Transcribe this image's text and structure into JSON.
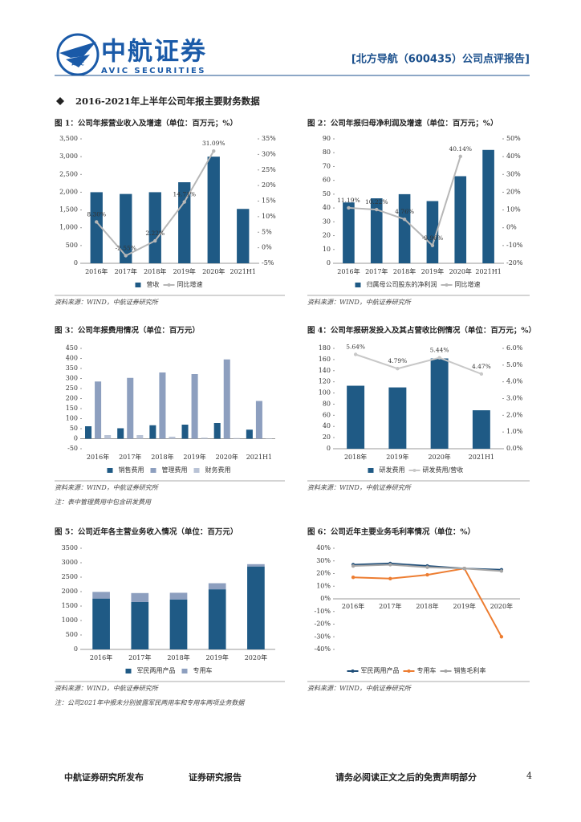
{
  "header": {
    "logo_mark": "AVIC",
    "logo_name": "中航证券",
    "logo_en": "AVIC SECURITIES",
    "report_tag": "[北方导航（600435）公司点评报告]"
  },
  "section_title": "2016-2021年上半年公司年报主要财务数据",
  "footer": {
    "publisher": "中航证券研究所发布",
    "report_type": "证券研究报告",
    "disclaimer": "请务必阅读正文之后的免责声明部分",
    "page_number": "4"
  },
  "chart_data": [
    {
      "type": "combo",
      "title": "图 1：公司年报营业收入及增速（单位：百万元；%）",
      "source": "资料来源：WIND，中航证券研究所",
      "categories": [
        "2016年",
        "2017年",
        "2018年",
        "2019年",
        "2020年",
        "2021H1"
      ],
      "series": [
        {
          "name": "营收",
          "color": "#1f5a85",
          "values": [
            2000,
            1950,
            2000,
            2280,
            3000,
            1530
          ]
        },
        {
          "name": "同比增速",
          "color": "#b7b7b7",
          "axis": "y2",
          "values": [
            8.3,
            -2.55,
            2.22,
            14.71,
            31.09,
            null
          ],
          "value_labels": [
            "8.30%",
            "-2.55%",
            "2.22%",
            "14.71%",
            "31.09%",
            null
          ]
        }
      ],
      "ylim": [
        0,
        3500
      ],
      "yticks": [
        0,
        500,
        {
          "value": 1000,
          "label": "1,000"
        },
        {
          "value": 1500,
          "label": "1,500"
        },
        {
          "value": 2000,
          "label": "2,000"
        },
        {
          "value": 2500,
          "label": "2,500"
        },
        {
          "value": 3000,
          "label": "3,000"
        },
        {
          "value": 3500,
          "label": "3,500"
        }
      ],
      "y2lim": [
        -5,
        35
      ],
      "y2ticks": [
        {
          "value": -5,
          "label": "-5%"
        },
        {
          "value": 0,
          "label": "0%"
        },
        {
          "value": 5,
          "label": "5%"
        },
        {
          "value": 10,
          "label": "10%"
        },
        {
          "value": 15,
          "label": "15%"
        },
        {
          "value": 20,
          "label": "20%"
        },
        {
          "value": 25,
          "label": "25%"
        },
        {
          "value": 30,
          "label": "30%"
        },
        {
          "value": 35,
          "label": "35%"
        }
      ],
      "grid": false,
      "legend": "bottom"
    },
    {
      "type": "combo",
      "title": "图 2：公司年报归母净利润及增速（单位：百万元；%）",
      "source": "资料来源：WIND，中航证券研究所",
      "categories": [
        "2016年",
        "2017年",
        "2018年",
        "2019年",
        "2020年",
        "2021H1"
      ],
      "series": [
        {
          "name": "归属母公司股东的净利润",
          "color": "#1f5a85",
          "values": [
            44,
            47,
            50,
            45,
            63,
            82
          ]
        },
        {
          "name": "同比增速",
          "color": "#b7b7b7",
          "axis": "y2",
          "values": [
            11.19,
            10.22,
            4.76,
            -9.96,
            40.14,
            null
          ],
          "value_labels": [
            "11.19%",
            "10.22%",
            "4.76%",
            "-9.96%",
            "40.14%",
            null
          ]
        }
      ],
      "ylim": [
        0,
        90
      ],
      "yticks": [
        0,
        10,
        20,
        30,
        40,
        50,
        60,
        70,
        80,
        90
      ],
      "y2lim": [
        -20,
        50
      ],
      "y2ticks": [
        {
          "value": -20,
          "label": "-20%"
        },
        {
          "value": -10,
          "label": "-10%"
        },
        {
          "value": 0,
          "label": "0%"
        },
        {
          "value": 10,
          "label": "10%"
        },
        {
          "value": 20,
          "label": "20%"
        },
        {
          "value": 30,
          "label": "30%"
        },
        {
          "value": 40,
          "label": "40%"
        },
        {
          "value": 50,
          "label": "50%"
        }
      ],
      "grid": false,
      "legend": "bottom"
    },
    {
      "type": "bar",
      "title": "图 3：公司年报费用情况（单位：百万元）",
      "source": "资料来源：WIND，中航证券研究所",
      "note": "注：表中管理费用中包含研发费用",
      "categories": [
        "2016年",
        "2017年",
        "2018年",
        "2019年",
        "2020年",
        "2021H1"
      ],
      "series": [
        {
          "name": "销售费用",
          "color": "#1f5a85",
          "values": [
            62,
            52,
            67,
            70,
            78,
            45
          ]
        },
        {
          "name": "管理费用",
          "color": "#8d9fbf",
          "values": [
            285,
            303,
            330,
            322,
            395,
            188
          ]
        },
        {
          "name": "财务费用",
          "color": "#b9c3d6",
          "values": [
            18,
            18,
            10,
            5,
            3,
            2
          ]
        }
      ],
      "ylim": [
        -50,
        450
      ],
      "yticks": [
        -50,
        0,
        50,
        100,
        150,
        200,
        250,
        300,
        350,
        400,
        450
      ],
      "grid": false,
      "legend": "bottom"
    },
    {
      "type": "combo",
      "title": "图 4：公司年报研发投入及其占营收比例情况（单位：百万元；%）",
      "source": "资料来源：WIND，中航证券研究所",
      "categories": [
        "2018年",
        "2019年",
        "2020年",
        "2021H1"
      ],
      "series": [
        {
          "name": "研发费用",
          "color": "#1f5a85",
          "values": [
            113,
            110,
            162,
            69
          ]
        },
        {
          "name": "研发费用/营收",
          "color": "#c8c8c8",
          "axis": "y2",
          "values": [
            5.64,
            4.79,
            5.44,
            4.47
          ],
          "value_labels": [
            "5.64%",
            "4.79%",
            "5.44%",
            "4.47%"
          ]
        }
      ],
      "ylim": [
        0,
        180
      ],
      "yticks": [
        0,
        20,
        40,
        60,
        80,
        100,
        120,
        140,
        160,
        180
      ],
      "y2lim": [
        0,
        6
      ],
      "y2ticks": [
        {
          "value": 0,
          "label": "0.0%"
        },
        {
          "value": 1,
          "label": "1.0%"
        },
        {
          "value": 2,
          "label": "2.0%"
        },
        {
          "value": 3,
          "label": "3.0%"
        },
        {
          "value": 4,
          "label": "4.0%"
        },
        {
          "value": 5,
          "label": "5.0%"
        },
        {
          "value": 6,
          "label": "6.0%"
        }
      ],
      "grid": false,
      "legend": "bottom"
    },
    {
      "type": "stacked_bar",
      "title": "图 5：公司近年各主营业务收入情况（单位：百万元）",
      "source": "资料来源：WIND，中航证券研究所",
      "note": "注：公司2021年中报未分别披露军民两用车和专用车两项业务数据",
      "categories": [
        "2016年",
        "2017年",
        "2018年",
        "2019年",
        "2020年"
      ],
      "series": [
        {
          "name": "军民两用产品",
          "color": "#1f5a85",
          "values": [
            1760,
            1640,
            1730,
            2080,
            2870
          ]
        },
        {
          "name": "专用车",
          "color": "#8d9fbf",
          "values": [
            230,
            310,
            230,
            210,
            80
          ]
        }
      ],
      "ylim": [
        0,
        3500
      ],
      "yticks": [
        0,
        500,
        1000,
        1500,
        2000,
        2500,
        3000,
        3500
      ],
      "grid": false,
      "legend": "bottom"
    },
    {
      "type": "line",
      "title": "图 6：公司近年主要业务毛利率情况（单位：%）",
      "source": "资料来源：WIND，中航证券研究所",
      "categories": [
        "2016年",
        "2017年",
        "2018年",
        "2019年",
        "2020年"
      ],
      "series": [
        {
          "name": "军民两用产品",
          "color": "#1f4e79",
          "values": [
            27,
            28,
            26,
            24,
            23
          ]
        },
        {
          "name": "专用车",
          "color": "#ed7d31",
          "values": [
            17,
            16,
            19,
            24,
            -30
          ]
        },
        {
          "name": "销售毛利率",
          "color": "#a5a5a5",
          "values": [
            26,
            27,
            25,
            24,
            22
          ]
        }
      ],
      "ylim": [
        -40,
        40
      ],
      "yticks": [
        {
          "value": -40,
          "label": "-40%"
        },
        {
          "value": -30,
          "label": "-30%"
        },
        {
          "value": -20,
          "label": "-20%"
        },
        {
          "value": -10,
          "label": "-10%"
        },
        {
          "value": 0,
          "label": "0%"
        },
        {
          "value": 10,
          "label": "10%"
        },
        {
          "value": 20,
          "label": "20%"
        },
        {
          "value": 30,
          "label": "30%"
        },
        {
          "value": 40,
          "label": "40%"
        }
      ],
      "grid": false,
      "legend": "bottom"
    }
  ]
}
